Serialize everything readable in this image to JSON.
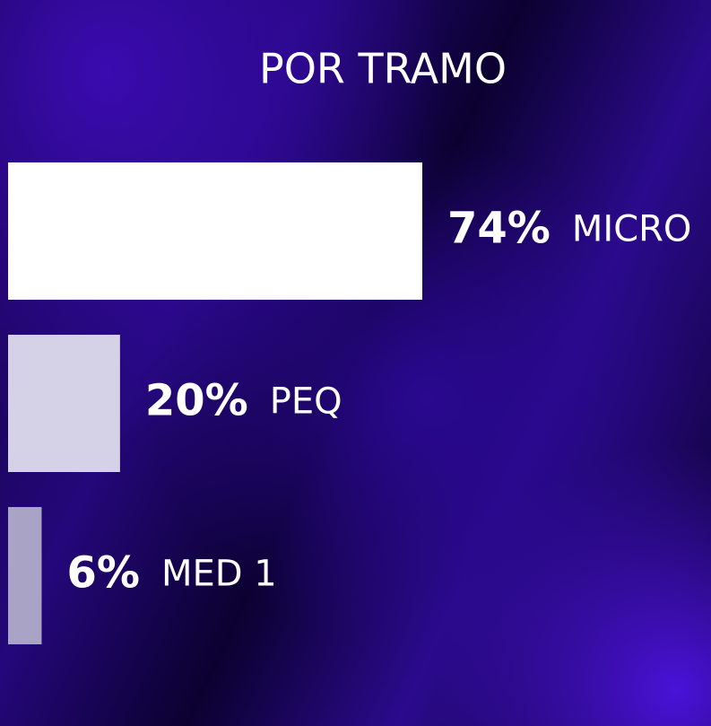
{
  "chart_data": {
    "type": "hbar",
    "title": "POR TRAMO",
    "categories": [
      "MICRO",
      "PEQ",
      "MED 1"
    ],
    "values": [
      74,
      20,
      6
    ],
    "value_labels": [
      "74%",
      "20%",
      "6%"
    ],
    "colors": [
      "#ffffff",
      "#d5d1e6",
      "#a9a3c6"
    ]
  }
}
